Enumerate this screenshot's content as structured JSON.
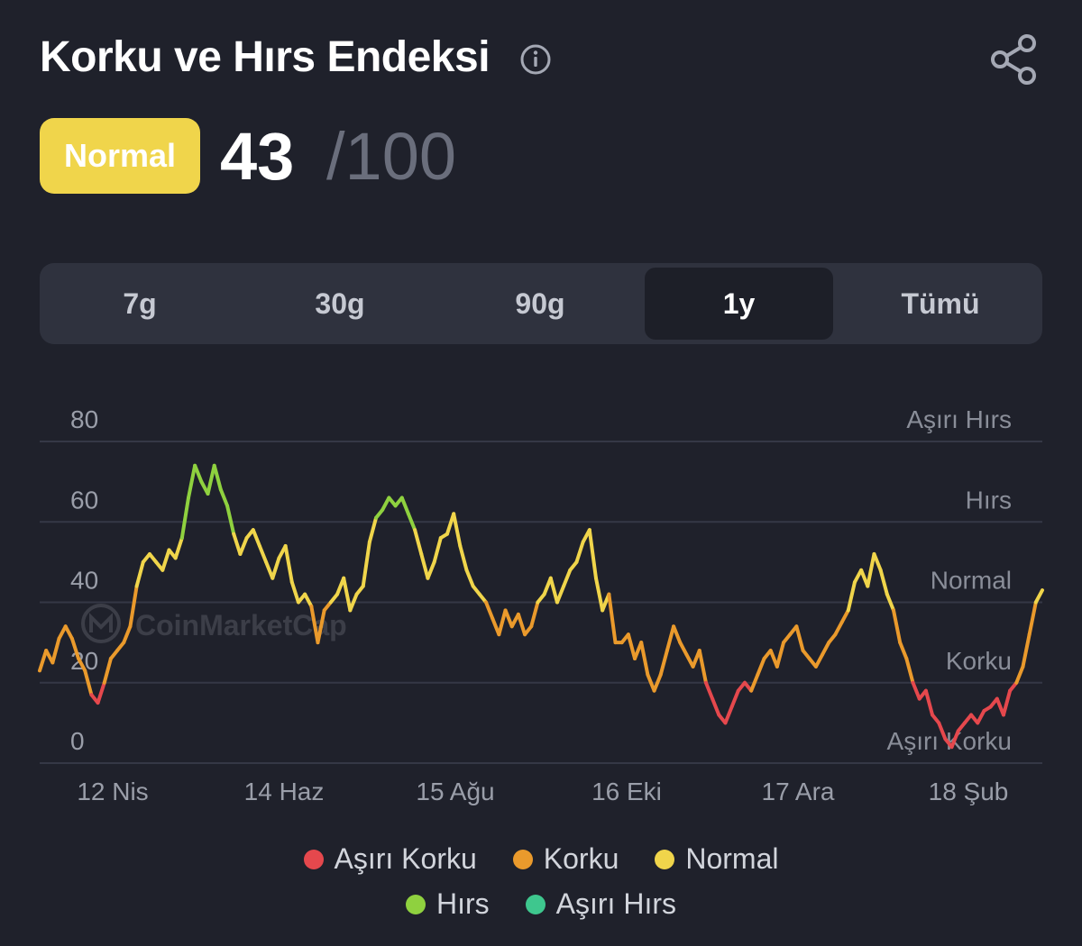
{
  "header": {
    "title": "Korku ve Hırs Endeksi",
    "info_icon": "info-circle-icon",
    "share_icon": "share-icon"
  },
  "score": {
    "label": "Normal",
    "label_color": "#f0d54b",
    "value": "43",
    "max": "/100"
  },
  "tabs": [
    {
      "label": "7g",
      "active": false
    },
    {
      "label": "30g",
      "active": false
    },
    {
      "label": "90g",
      "active": false
    },
    {
      "label": "1y",
      "active": true
    },
    {
      "label": "Tümü",
      "active": false
    }
  ],
  "watermark": "CoinMarketCap",
  "legend": [
    {
      "label": "Aşırı Korku",
      "color": "#e5484d"
    },
    {
      "label": "Korku",
      "color": "#ea9a2c"
    },
    {
      "label": "Normal",
      "color": "#f0d54b"
    },
    {
      "label": "Hırs",
      "color": "#8fd13f"
    },
    {
      "label": "Aşırı Hırs",
      "color": "#3ec78e"
    }
  ],
  "chart_data": {
    "type": "line",
    "ylim": [
      0,
      80
    ],
    "y_ticks": [
      "0",
      "20",
      "40",
      "60",
      "80"
    ],
    "zones": [
      "Aşırı Korku",
      "Korku",
      "Normal",
      "Hırs",
      "Aşırı Hırs"
    ],
    "x_tick_labels": [
      "12 Nis",
      "14 Haz",
      "15 Ağu",
      "16 Eki",
      "17 Ara",
      "18 Şub"
    ],
    "series": [
      {
        "values": [
          23,
          28,
          25,
          31,
          34,
          31,
          26,
          23,
          17,
          15,
          20,
          26,
          28,
          30,
          34,
          44,
          50,
          52,
          50,
          48,
          53,
          51,
          56,
          66,
          74,
          70,
          67,
          74,
          68,
          64,
          57,
          52,
          56,
          58,
          54,
          50,
          46,
          51,
          54,
          45,
          40,
          42,
          39,
          30,
          38,
          40,
          42,
          46,
          38,
          42,
          44,
          55,
          61,
          63,
          66,
          64,
          66,
          62,
          58,
          52,
          46,
          50,
          56,
          57,
          62,
          54,
          48,
          44,
          42,
          40,
          36,
          32,
          38,
          34,
          37,
          32,
          34,
          40,
          42,
          46,
          40,
          44,
          48,
          50,
          55,
          58,
          46,
          38,
          42,
          30,
          30,
          32,
          26,
          30,
          22,
          18,
          22,
          28,
          34,
          30,
          27,
          24,
          28,
          20,
          16,
          12,
          10,
          14,
          18,
          20,
          18,
          22,
          26,
          28,
          24,
          30,
          32,
          34,
          28,
          26,
          24,
          27,
          30,
          32,
          35,
          38,
          45,
          48,
          44,
          52,
          48,
          42,
          38,
          30,
          26,
          20,
          16,
          18,
          12,
          10,
          6,
          4,
          8,
          10,
          12,
          10,
          13,
          14,
          16,
          12,
          18,
          20,
          24,
          32,
          40,
          43
        ]
      }
    ]
  }
}
